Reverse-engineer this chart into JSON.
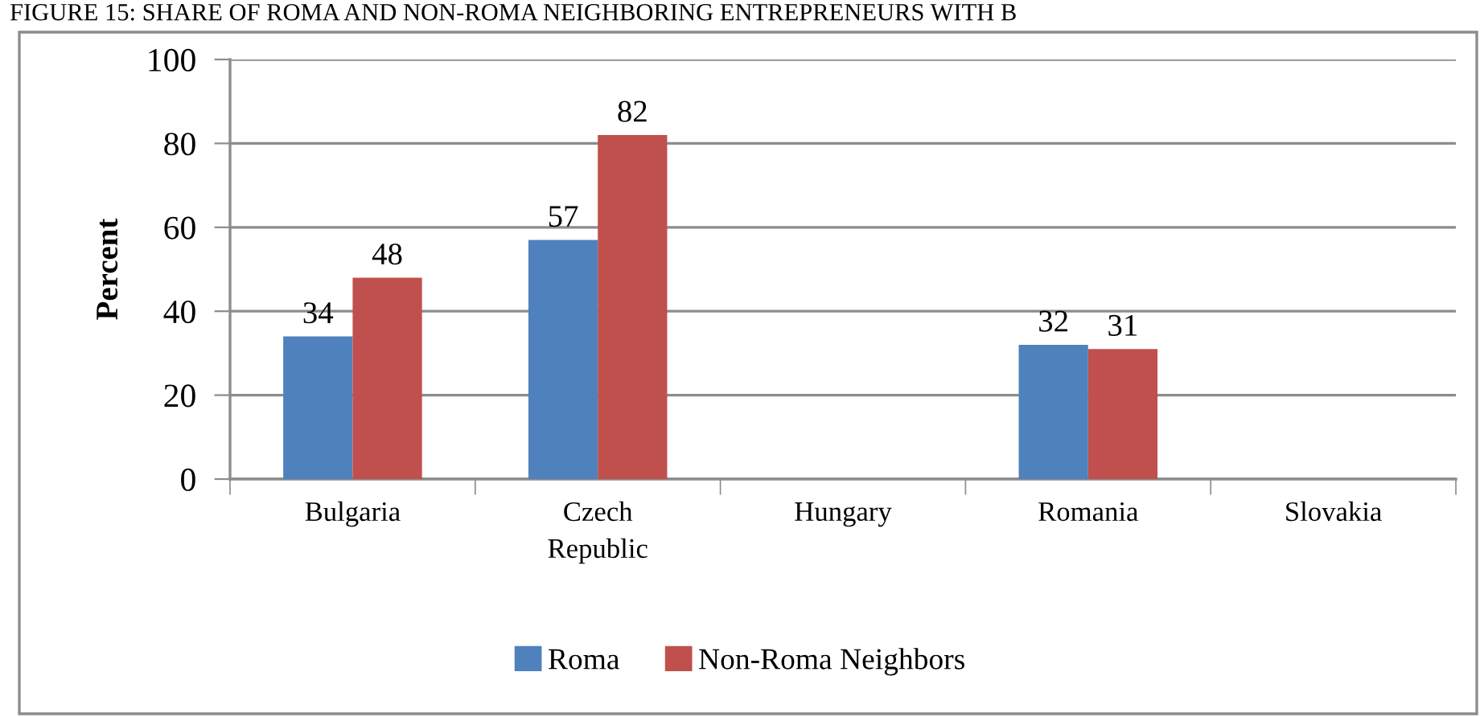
{
  "chart_data": {
    "type": "bar",
    "title": "FIGURE 15: SHARE OF ROMA AND NON-ROMA NEIGHBORING ENTREPRENEURS WITH B",
    "ylabel": "Percent",
    "categories": [
      "Bulgaria",
      "Czech Republic",
      "Hungary",
      "Romania",
      "Slovakia"
    ],
    "series": [
      {
        "name": "Roma",
        "color": "#4f81bd",
        "values": [
          34,
          57,
          null,
          32,
          null
        ]
      },
      {
        "name": "Non-Roma Neighbors",
        "color": "#c0504d",
        "values": [
          48,
          82,
          null,
          31,
          null
        ]
      }
    ],
    "ylim": [
      0,
      100
    ],
    "yticks": [
      0,
      20,
      40,
      60,
      80,
      100
    ],
    "grid": "y",
    "legend": "bottom",
    "data_labels": true
  }
}
